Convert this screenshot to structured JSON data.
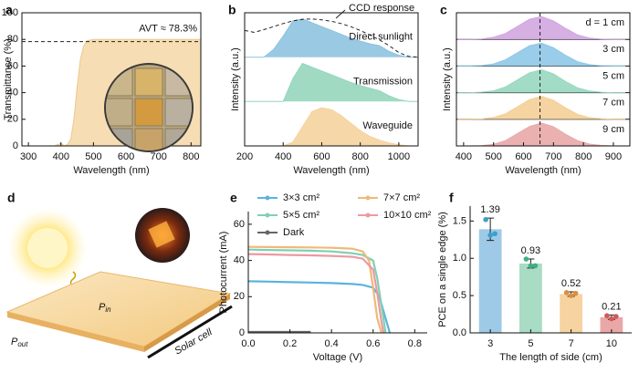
{
  "chart_data": [
    {
      "type": "area",
      "panel": "a",
      "xlabel": "Wavelength (nm)",
      "ylabel": "Transmittance (%)",
      "x": [
        280,
        380,
        400,
        410,
        420,
        430,
        440,
        450,
        460,
        470,
        480,
        500,
        600,
        700,
        800,
        830
      ],
      "values": [
        0,
        0,
        2,
        0,
        1,
        5,
        20,
        45,
        65,
        75,
        79,
        80,
        80,
        80,
        80,
        80
      ],
      "color": "#f6ddb3",
      "xlim": [
        280,
        830
      ],
      "xticks": [
        300,
        400,
        500,
        600,
        700,
        800
      ],
      "ylim": [
        0,
        100
      ],
      "yticks": [
        0,
        20,
        40,
        60,
        80,
        100
      ],
      "hline": {
        "value": 78.3,
        "label": "AVT ≈ 78.3%"
      },
      "frame": "box"
    },
    {
      "type": "spectra",
      "panel": "b",
      "xlabel": "Wavelength (nm)",
      "ylabel": "Intensity (a.u.)",
      "x": [
        200,
        250,
        300,
        350,
        400,
        450,
        500,
        550,
        600,
        650,
        700,
        750,
        800,
        850,
        900,
        950,
        1000,
        1050,
        1100
      ],
      "xlim": [
        200,
        1100
      ],
      "xticks": [
        200,
        400,
        600,
        800,
        1000
      ],
      "bands": 3,
      "separators": false,
      "frame": "box",
      "series": [
        {
          "name": "Direct sunlight",
          "color": "#8ec3e0",
          "band": 0,
          "values": [
            0,
            0,
            0,
            0.2,
            0.55,
            0.95,
            1,
            0.9,
            0.8,
            0.7,
            0.6,
            0.5,
            0.42,
            0.35,
            0.3,
            0.15,
            0.05,
            0,
            0
          ]
        },
        {
          "name": "Transmission",
          "color": "#96d6bd",
          "band": 1,
          "values": [
            0,
            0,
            0,
            0,
            0,
            0.6,
            1,
            0.9,
            0.8,
            0.7,
            0.6,
            0.5,
            0.42,
            0.35,
            0.28,
            0.15,
            0.05,
            0,
            0
          ]
        },
        {
          "name": "Waveguide",
          "color": "#f5d39f",
          "band": 2,
          "values": [
            0,
            0,
            0,
            0,
            0,
            0.1,
            0.5,
            0.9,
            1,
            0.95,
            0.8,
            0.6,
            0.4,
            0.25,
            0.15,
            0.08,
            0.03,
            0,
            0
          ]
        },
        {
          "name": "CCD response",
          "color": "#222222",
          "band": 0,
          "style": "dashed",
          "values": [
            0.7,
            0.65,
            0.72,
            0.8,
            0.88,
            0.95,
            0.99,
            1,
            0.98,
            0.94,
            0.88,
            0.8,
            0.7,
            0.58,
            0.45,
            0.3,
            0.12,
            0.02,
            0
          ]
        }
      ]
    },
    {
      "type": "spectra",
      "panel": "c",
      "xlabel": "Wavelength (nm)",
      "ylabel": "Intensity (a.u.)",
      "x": [
        380,
        420,
        460,
        500,
        540,
        580,
        620,
        660,
        700,
        740,
        780,
        820,
        860,
        900,
        940
      ],
      "xlim": [
        376,
        955
      ],
      "xticks": [
        400,
        500,
        600,
        700,
        800,
        900
      ],
      "bands": 5,
      "separators": true,
      "frame": "box",
      "vline": 655,
      "series": [
        {
          "name": "d = 1 cm",
          "color": "#d2a6e0",
          "band": 0,
          "values": [
            0,
            0,
            0.02,
            0.09,
            0.26,
            0.57,
            0.88,
            1,
            0.81,
            0.48,
            0.2,
            0.06,
            0.01,
            0,
            0
          ]
        },
        {
          "name": "3 cm",
          "color": "#8ec8e8",
          "band": 1,
          "values": [
            0,
            0,
            0.02,
            0.09,
            0.27,
            0.58,
            0.89,
            1,
            0.8,
            0.47,
            0.19,
            0.06,
            0.01,
            0,
            0
          ]
        },
        {
          "name": "5 cm",
          "color": "#98d8c0",
          "band": 2,
          "values": [
            0,
            0,
            0.02,
            0.08,
            0.25,
            0.56,
            0.87,
            1,
            0.82,
            0.49,
            0.21,
            0.07,
            0.01,
            0,
            0
          ]
        },
        {
          "name": "7 cm",
          "color": "#f4cf98",
          "band": 3,
          "values": [
            0,
            0,
            0.01,
            0.08,
            0.24,
            0.55,
            0.86,
            1,
            0.83,
            0.5,
            0.22,
            0.07,
            0.02,
            0,
            0
          ]
        },
        {
          "name": "9 cm",
          "color": "#e9a8a8",
          "band": 4,
          "values": [
            0,
            0,
            0.01,
            0.07,
            0.23,
            0.54,
            0.85,
            1,
            0.84,
            0.51,
            0.23,
            0.08,
            0.02,
            0,
            0
          ]
        }
      ]
    },
    {
      "type": "line",
      "panel": "e",
      "xlabel": "Voltage (V)",
      "ylabel": "Photocurrent (mA)",
      "xlim": [
        0,
        0.86
      ],
      "xticks": [
        {
          "value": 0,
          "label": "0.0"
        },
        0.2,
        0.4,
        0.6,
        0.8
      ],
      "ylim": [
        0,
        67
      ],
      "yticks": [
        0,
        20,
        40,
        60
      ],
      "legend": "top-left",
      "frame": "open",
      "series": [
        {
          "name": "3×3 cm²",
          "color": "#5ab4dc",
          "x": [
            0,
            0.1,
            0.2,
            0.3,
            0.4,
            0.5,
            0.55,
            0.6,
            0.63,
            0.65,
            0.67,
            0.68
          ],
          "values": [
            28.5,
            28.3,
            28,
            27.8,
            27.5,
            27,
            26.5,
            25,
            20,
            12,
            4,
            0
          ]
        },
        {
          "name": "5×5 cm²",
          "color": "#7fd0b5",
          "x": [
            0,
            0.1,
            0.2,
            0.3,
            0.4,
            0.5,
            0.55,
            0.6,
            0.62,
            0.64,
            0.66
          ],
          "values": [
            46,
            45.8,
            45.6,
            45.4,
            45,
            44,
            43,
            40,
            30,
            15,
            0
          ]
        },
        {
          "name": "Dark",
          "color": "#666666",
          "x": [
            0,
            0.1,
            0.2,
            0.3
          ],
          "values": [
            0.5,
            0.5,
            0.5,
            0.5
          ]
        },
        {
          "name": "7×7 cm²",
          "color": "#f0b87a",
          "x": [
            0,
            0.1,
            0.2,
            0.3,
            0.4,
            0.5,
            0.55,
            0.58,
            0.6,
            0.62,
            0.64
          ],
          "values": [
            47.5,
            47.4,
            47.3,
            47.2,
            47,
            46.5,
            45,
            40,
            25,
            8,
            0
          ]
        },
        {
          "name": "10×10 cm²",
          "color": "#eb9aa0",
          "x": [
            0,
            0.1,
            0.2,
            0.3,
            0.4,
            0.5,
            0.55,
            0.6,
            0.62,
            0.64,
            0.65
          ],
          "values": [
            43.5,
            43.3,
            43,
            42.8,
            42.5,
            42,
            41,
            35,
            22,
            6,
            0
          ]
        }
      ]
    },
    {
      "type": "bar",
      "panel": "f",
      "xlabel": "The length of side (cm)",
      "ylabel": "PCE on a single edge (%)",
      "categories": [
        "3",
        "5",
        "7",
        "10"
      ],
      "values": [
        1.39,
        0.93,
        0.52,
        0.21
      ],
      "errors": [
        0.15,
        0.06,
        0.03,
        0.03
      ],
      "samples": [
        [
          1.52,
          1.31,
          1.33
        ],
        [
          0.99,
          0.9,
          0.9
        ],
        [
          0.54,
          0.5,
          0.53
        ],
        [
          0.23,
          0.19,
          0.22
        ]
      ],
      "colors": [
        "#9ecae8",
        "#a8dcc4",
        "#f6d3a0",
        "#eaa7a7"
      ],
      "sample_colors": [
        "#3aa0c8",
        "#3fae86",
        "#d99040",
        "#d05a5a"
      ],
      "ylim": [
        0,
        1.7
      ],
      "yticks": [
        {
          "value": 0,
          "label": "0.0"
        },
        0.5,
        {
          "value": 1,
          "label": "1.0"
        },
        1.5
      ],
      "frame": "open"
    }
  ],
  "diagram": {
    "panel": "d",
    "p_in": {
      "symbol": "P",
      "subscript": "in"
    },
    "p_out": {
      "symbol": "P",
      "subscript": "out"
    },
    "solar_cell": "Solar cell"
  }
}
